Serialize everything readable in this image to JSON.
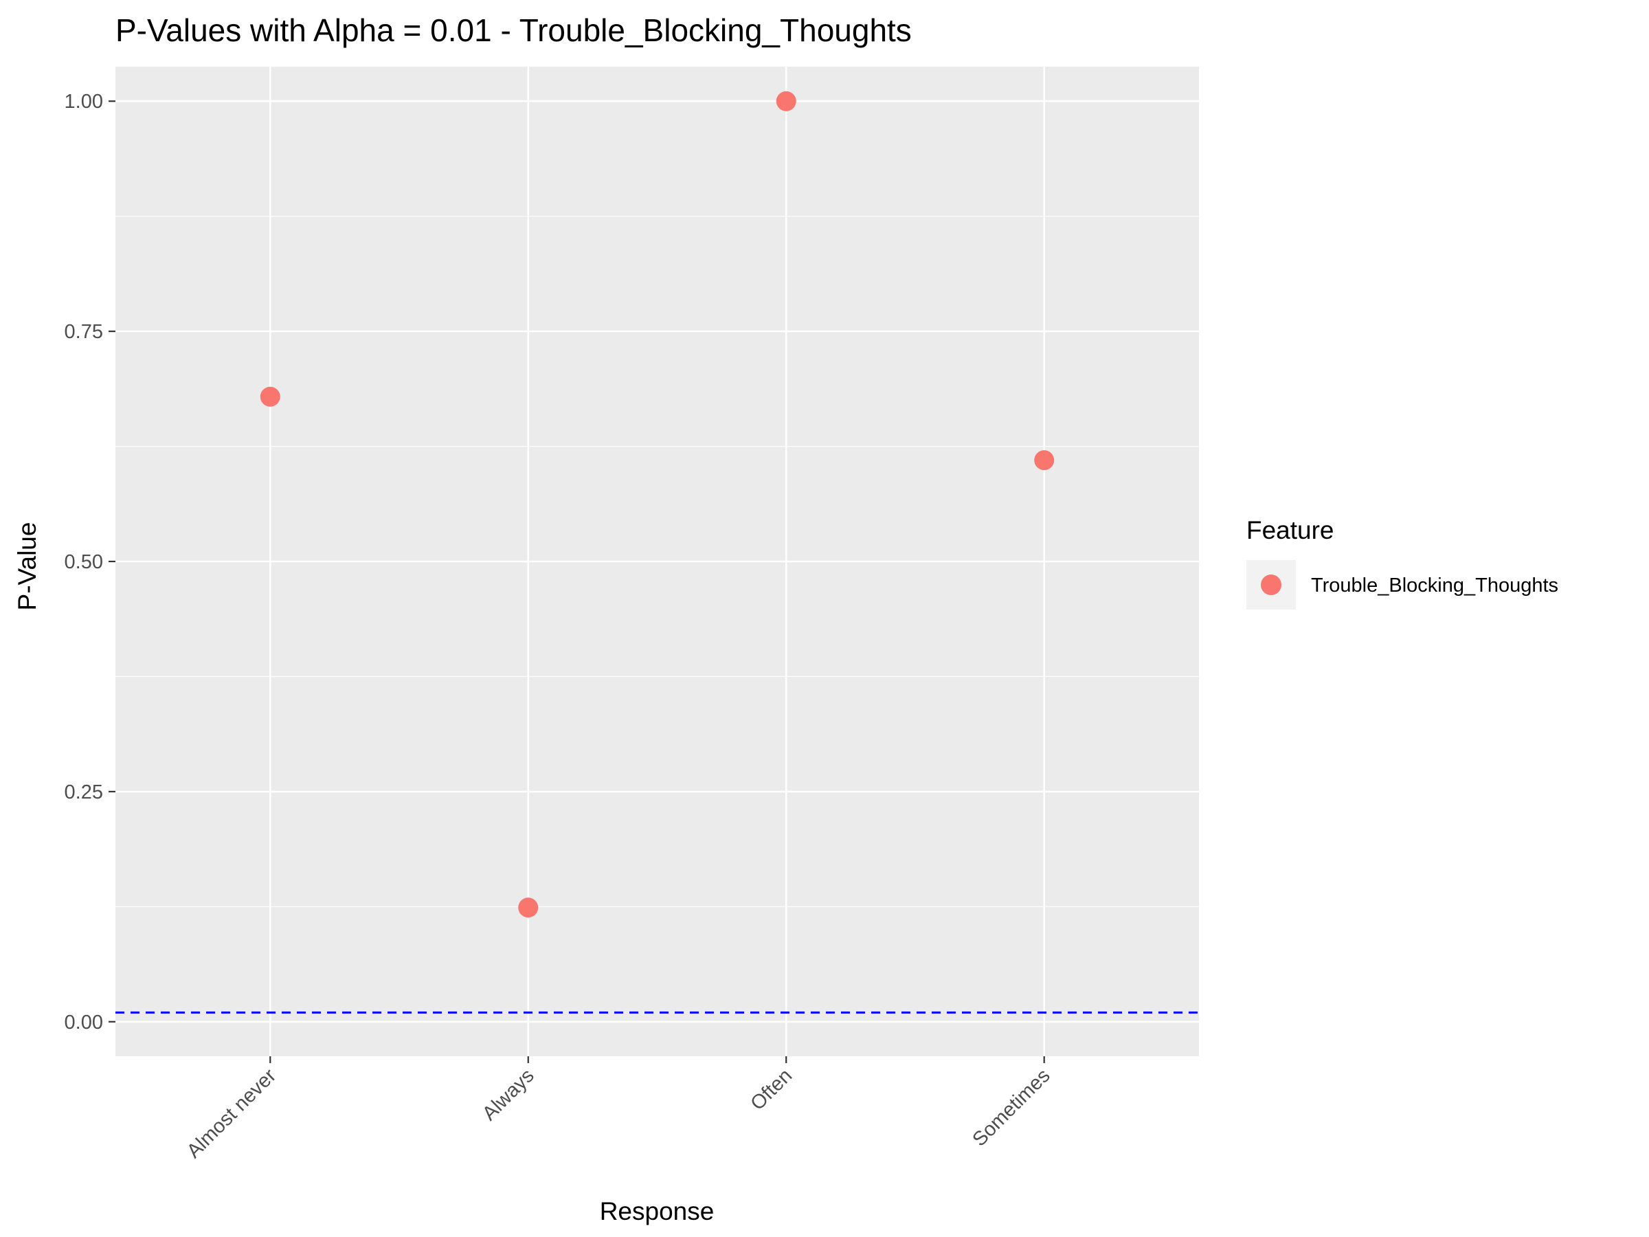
{
  "chart_data": {
    "type": "scatter",
    "title": "P-Values with Alpha = 0.01 - Trouble_Blocking_Thoughts",
    "xlabel": "Response",
    "ylabel": "P-Value",
    "categories": [
      "Almost never",
      "Always",
      "Often",
      "Sometimes"
    ],
    "series": [
      {
        "name": "Trouble_Blocking_Thoughts",
        "values": [
          0.679,
          0.124,
          1.0,
          0.61
        ]
      }
    ],
    "ylim": [
      -0.0375,
      1.0375
    ],
    "yticks": [
      0.0,
      0.25,
      0.5,
      0.75,
      1.0
    ],
    "ytick_labels": [
      "0.00",
      "0.25",
      "0.50",
      "0.75",
      "1.00"
    ],
    "hline": {
      "value": 0.01,
      "color": "#0000ff",
      "style": "dashed"
    },
    "grid": true,
    "legend": {
      "title": "Feature",
      "position": "right"
    },
    "colors": {
      "panel": "#ebebeb",
      "grid": "#ffffff",
      "point": "#f8766d",
      "tick_text": "#4d4d4d",
      "legend_key": "#f2f2f2"
    }
  }
}
